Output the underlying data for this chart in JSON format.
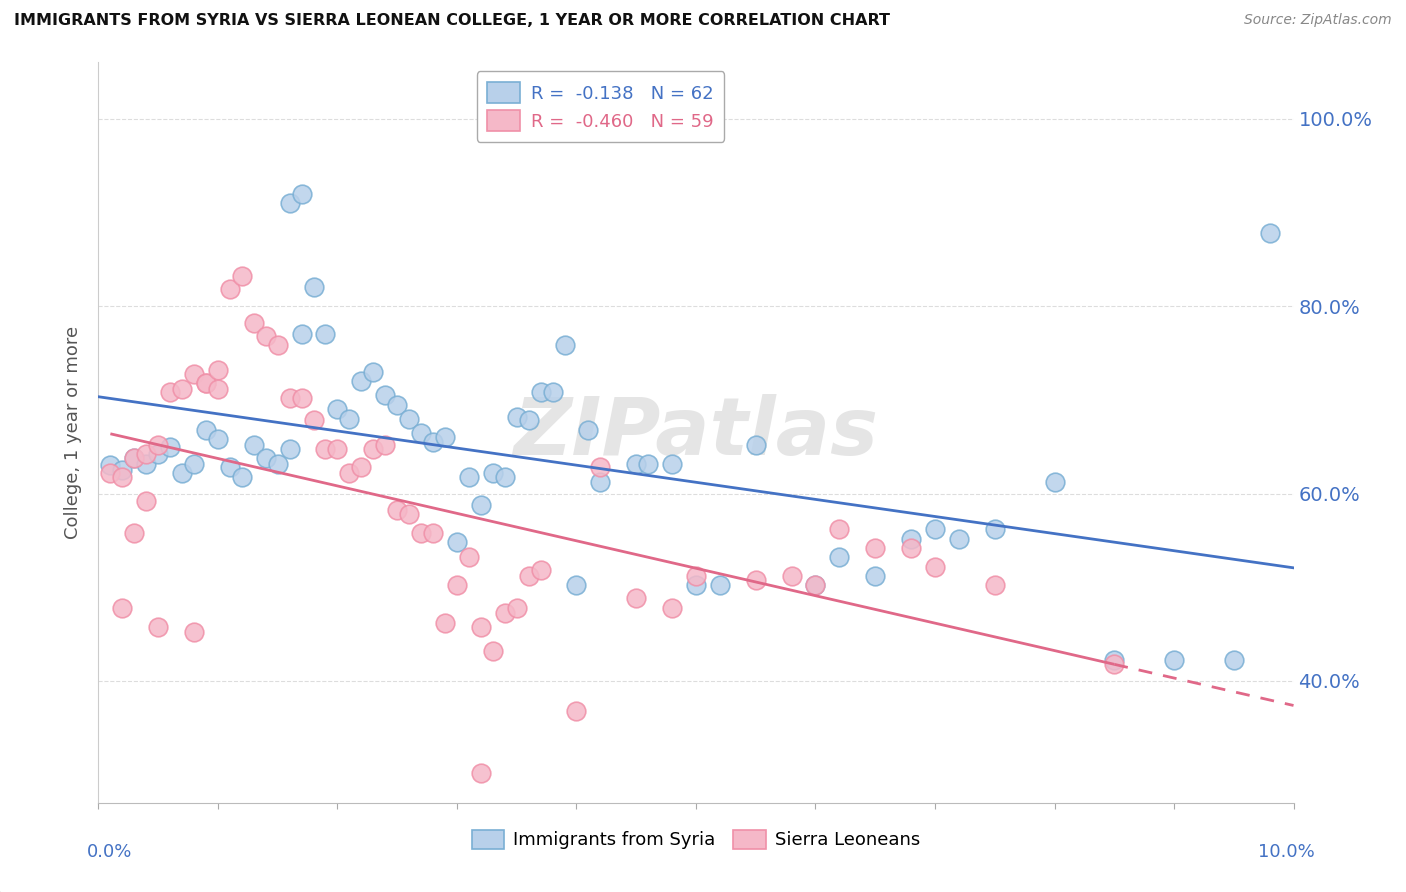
{
  "title": "IMMIGRANTS FROM SYRIA VS SIERRA LEONEAN COLLEGE, 1 YEAR OR MORE CORRELATION CHART",
  "source": "Source: ZipAtlas.com",
  "ylabel": "College, 1 year or more",
  "xlim": [
    0.0,
    0.1
  ],
  "ylim": [
    0.27,
    1.06
  ],
  "yticks": [
    0.4,
    0.6,
    0.8,
    1.0
  ],
  "ytick_labels": [
    "40.0%",
    "60.0%",
    "80.0%",
    "100.0%"
  ],
  "xticks": [
    0.0,
    0.01,
    0.02,
    0.03,
    0.04,
    0.05,
    0.06,
    0.07,
    0.08,
    0.09,
    0.1
  ],
  "legend_r1": "R =  -0.138",
  "legend_n1": "N = 62",
  "legend_r2": "R =  -0.460",
  "legend_n2": "N = 59",
  "watermark": "ZIPatlas",
  "blue_fill": "#b8d0ea",
  "pink_fill": "#f5b8c8",
  "blue_edge": "#7aafd4",
  "pink_edge": "#f090a8",
  "blue_line_color": "#4472c4",
  "pink_line_color": "#e06888",
  "tick_label_color": "#4472c4",
  "syria_points": [
    [
      0.001,
      0.63
    ],
    [
      0.002,
      0.625
    ],
    [
      0.003,
      0.638
    ],
    [
      0.004,
      0.632
    ],
    [
      0.005,
      0.642
    ],
    [
      0.006,
      0.65
    ],
    [
      0.007,
      0.622
    ],
    [
      0.008,
      0.632
    ],
    [
      0.009,
      0.668
    ],
    [
      0.01,
      0.658
    ],
    [
      0.011,
      0.628
    ],
    [
      0.012,
      0.618
    ],
    [
      0.013,
      0.652
    ],
    [
      0.014,
      0.638
    ],
    [
      0.015,
      0.632
    ],
    [
      0.016,
      0.648
    ],
    [
      0.016,
      0.91
    ],
    [
      0.017,
      0.77
    ],
    [
      0.017,
      0.92
    ],
    [
      0.018,
      0.82
    ],
    [
      0.019,
      0.77
    ],
    [
      0.02,
      0.69
    ],
    [
      0.021,
      0.68
    ],
    [
      0.022,
      0.72
    ],
    [
      0.023,
      0.73
    ],
    [
      0.024,
      0.705
    ],
    [
      0.025,
      0.695
    ],
    [
      0.026,
      0.68
    ],
    [
      0.027,
      0.665
    ],
    [
      0.028,
      0.655
    ],
    [
      0.029,
      0.66
    ],
    [
      0.03,
      0.548
    ],
    [
      0.031,
      0.618
    ],
    [
      0.032,
      0.588
    ],
    [
      0.033,
      0.622
    ],
    [
      0.034,
      0.618
    ],
    [
      0.035,
      0.682
    ],
    [
      0.036,
      0.678
    ],
    [
      0.037,
      0.708
    ],
    [
      0.038,
      0.708
    ],
    [
      0.039,
      0.758
    ],
    [
      0.04,
      0.502
    ],
    [
      0.041,
      0.668
    ],
    [
      0.042,
      0.612
    ],
    [
      0.045,
      0.632
    ],
    [
      0.046,
      0.632
    ],
    [
      0.048,
      0.632
    ],
    [
      0.05,
      0.502
    ],
    [
      0.052,
      0.502
    ],
    [
      0.055,
      0.652
    ],
    [
      0.06,
      0.502
    ],
    [
      0.062,
      0.532
    ],
    [
      0.065,
      0.512
    ],
    [
      0.068,
      0.552
    ],
    [
      0.07,
      0.562
    ],
    [
      0.072,
      0.552
    ],
    [
      0.075,
      0.562
    ],
    [
      0.08,
      0.612
    ],
    [
      0.085,
      0.422
    ],
    [
      0.09,
      0.422
    ],
    [
      0.095,
      0.422
    ],
    [
      0.098,
      0.878
    ]
  ],
  "sierra_points": [
    [
      0.001,
      0.622
    ],
    [
      0.002,
      0.618
    ],
    [
      0.002,
      0.478
    ],
    [
      0.003,
      0.638
    ],
    [
      0.003,
      0.558
    ],
    [
      0.004,
      0.642
    ],
    [
      0.004,
      0.592
    ],
    [
      0.005,
      0.652
    ],
    [
      0.005,
      0.458
    ],
    [
      0.006,
      0.708
    ],
    [
      0.007,
      0.712
    ],
    [
      0.008,
      0.728
    ],
    [
      0.008,
      0.452
    ],
    [
      0.009,
      0.718
    ],
    [
      0.009,
      0.718
    ],
    [
      0.01,
      0.732
    ],
    [
      0.01,
      0.712
    ],
    [
      0.011,
      0.818
    ],
    [
      0.012,
      0.832
    ],
    [
      0.013,
      0.782
    ],
    [
      0.014,
      0.768
    ],
    [
      0.015,
      0.758
    ],
    [
      0.016,
      0.702
    ],
    [
      0.017,
      0.702
    ],
    [
      0.018,
      0.678
    ],
    [
      0.019,
      0.648
    ],
    [
      0.02,
      0.648
    ],
    [
      0.021,
      0.622
    ],
    [
      0.022,
      0.628
    ],
    [
      0.023,
      0.648
    ],
    [
      0.024,
      0.652
    ],
    [
      0.025,
      0.582
    ],
    [
      0.026,
      0.578
    ],
    [
      0.027,
      0.558
    ],
    [
      0.028,
      0.558
    ],
    [
      0.029,
      0.462
    ],
    [
      0.03,
      0.502
    ],
    [
      0.031,
      0.532
    ],
    [
      0.032,
      0.458
    ],
    [
      0.032,
      0.302
    ],
    [
      0.033,
      0.432
    ],
    [
      0.034,
      0.472
    ],
    [
      0.035,
      0.478
    ],
    [
      0.036,
      0.512
    ],
    [
      0.037,
      0.518
    ],
    [
      0.04,
      0.368
    ],
    [
      0.042,
      0.628
    ],
    [
      0.045,
      0.488
    ],
    [
      0.048,
      0.478
    ],
    [
      0.05,
      0.512
    ],
    [
      0.055,
      0.508
    ],
    [
      0.058,
      0.512
    ],
    [
      0.06,
      0.502
    ],
    [
      0.062,
      0.562
    ],
    [
      0.065,
      0.542
    ],
    [
      0.068,
      0.542
    ],
    [
      0.07,
      0.522
    ],
    [
      0.075,
      0.502
    ],
    [
      0.085,
      0.418
    ]
  ]
}
